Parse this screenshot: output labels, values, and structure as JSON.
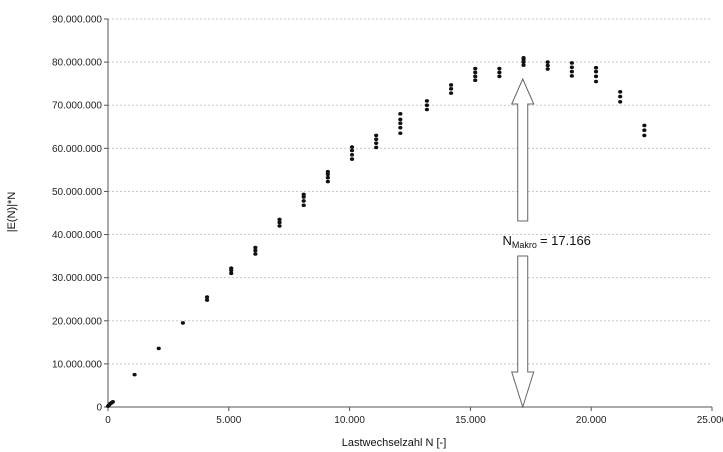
{
  "chart_data": {
    "type": "scatter",
    "title": "",
    "xlabel": "Lastwechselzahl N [-]",
    "ylabel": "|E(N)|*N",
    "xlim": [
      0,
      25000
    ],
    "ylim": [
      0,
      90000000
    ],
    "x_ticks": [
      0,
      5000,
      10000,
      15000,
      20000,
      25000
    ],
    "x_tick_labels": [
      "0",
      "5.000",
      "10.000",
      "15.000",
      "20.000",
      "25.000"
    ],
    "y_ticks": [
      0,
      10000000,
      20000000,
      30000000,
      40000000,
      50000000,
      60000000,
      70000000,
      80000000,
      90000000
    ],
    "y_tick_labels": [
      "0",
      "10.000.000",
      "20.000.000",
      "30.000.000",
      "40.000.000",
      "50.000.000",
      "60.000.000",
      "70.000.000",
      "80.000.000",
      "90.000.000"
    ],
    "grid": "horizontal dashed",
    "series": [
      {
        "x": [
          0,
          50,
          100,
          150,
          200,
          1100,
          2100,
          3100,
          4100,
          4100,
          5100,
          5100,
          5100,
          6100,
          6100,
          6100,
          7100,
          7100,
          7100,
          8100,
          8100,
          8100,
          8100,
          9100,
          9100,
          9100,
          9100,
          10100,
          10100,
          10100,
          10100,
          11100,
          11100,
          11100,
          11100,
          12100,
          12100,
          12100,
          12100,
          12100,
          13200,
          13200,
          13200,
          14200,
          14200,
          14200,
          15200,
          15200,
          15200,
          15200,
          16200,
          16200,
          16200,
          17200,
          17200,
          17200,
          17200,
          18200,
          18200,
          18200,
          19200,
          19200,
          19200,
          19200,
          20200,
          20200,
          20200,
          20200,
          21200,
          21200,
          21200,
          22200,
          22200,
          22200
        ],
        "y": [
          200000,
          500000,
          800000,
          1000000,
          1200000,
          7500000,
          13600000,
          19500000,
          24800000,
          25500000,
          31000000,
          31700000,
          32200000,
          35500000,
          36300000,
          37000000,
          42000000,
          42800000,
          43500000,
          46800000,
          47800000,
          48700000,
          49300000,
          52300000,
          53200000,
          54000000,
          54600000,
          57500000,
          58500000,
          59500000,
          60300000,
          60200000,
          61200000,
          62100000,
          63000000,
          63500000,
          64800000,
          65800000,
          66700000,
          68000000,
          69000000,
          70000000,
          71000000,
          72800000,
          73800000,
          74700000,
          75800000,
          76700000,
          77600000,
          78500000,
          76700000,
          77600000,
          78500000,
          79300000,
          80000000,
          80600000,
          81000000,
          78400000,
          79200000,
          80000000,
          76800000,
          77800000,
          78800000,
          79800000,
          75500000,
          76700000,
          77800000,
          78700000,
          70800000,
          72000000,
          73100000,
          63000000,
          64200000,
          65300000
        ]
      }
    ],
    "annotation": {
      "label": "N",
      "label_subscript": "Makro",
      "label_value": "= 17.166",
      "x": 17166
    }
  }
}
